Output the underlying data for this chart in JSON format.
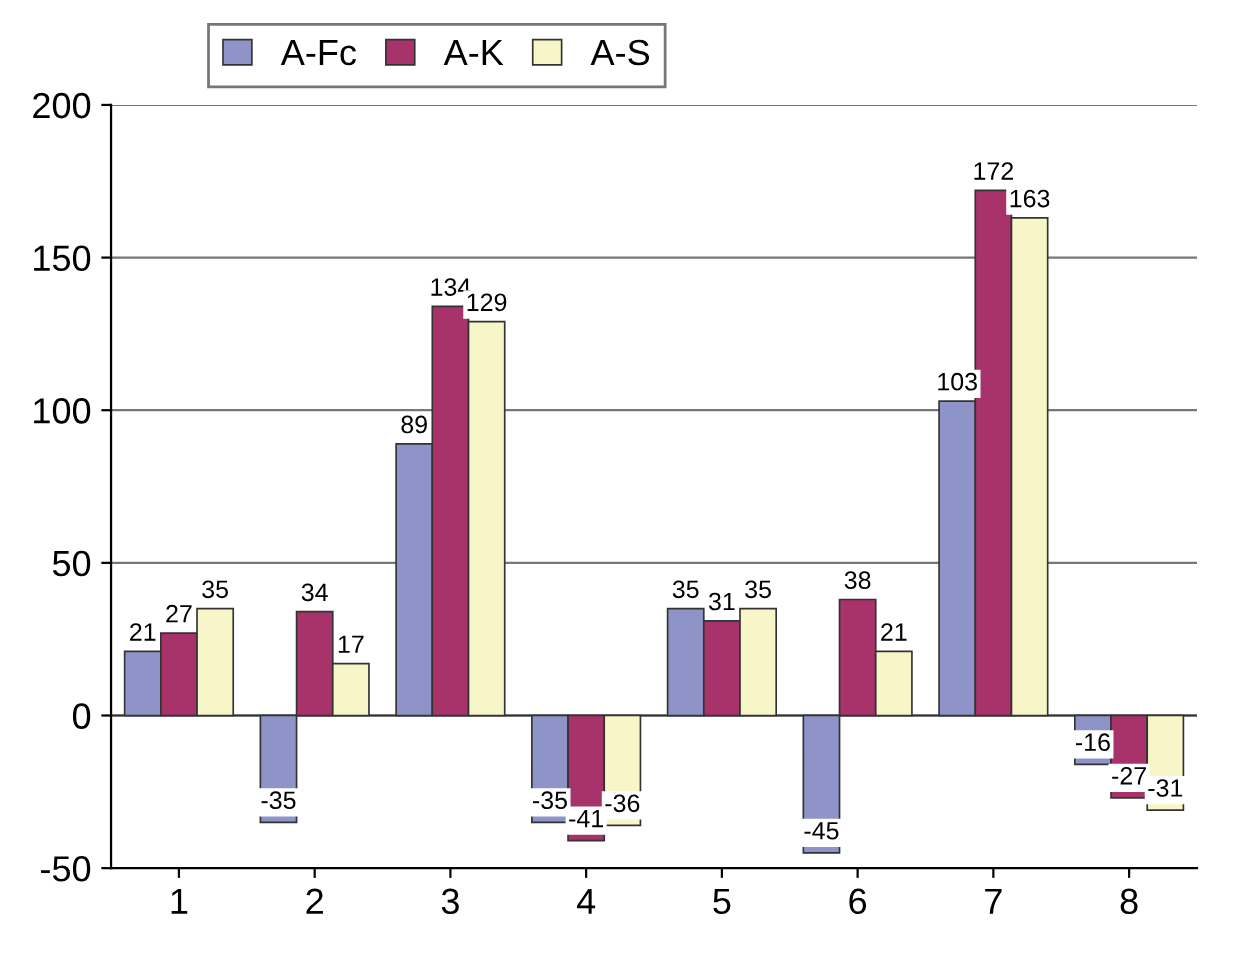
{
  "chart_data": {
    "type": "bar",
    "categories": [
      "1",
      "2",
      "3",
      "4",
      "5",
      "6",
      "7",
      "8"
    ],
    "series": [
      {
        "name": "A-Fc",
        "color": "#8f94c8",
        "values": [
          21,
          -35,
          89,
          -35,
          35,
          -45,
          103,
          -16
        ]
      },
      {
        "name": "A-K",
        "color": "#a8336a",
        "values": [
          27,
          34,
          134,
          -41,
          31,
          38,
          172,
          -27
        ]
      },
      {
        "name": "A-S",
        "color": "#f8f6c8",
        "values": [
          35,
          17,
          129,
          -36,
          35,
          21,
          163,
          -31
        ]
      }
    ],
    "ylim": [
      -50,
      200
    ],
    "yticks": [
      -50,
      0,
      50,
      100,
      150,
      200
    ],
    "grid": "y",
    "legend": "top",
    "data_labels": true
  }
}
